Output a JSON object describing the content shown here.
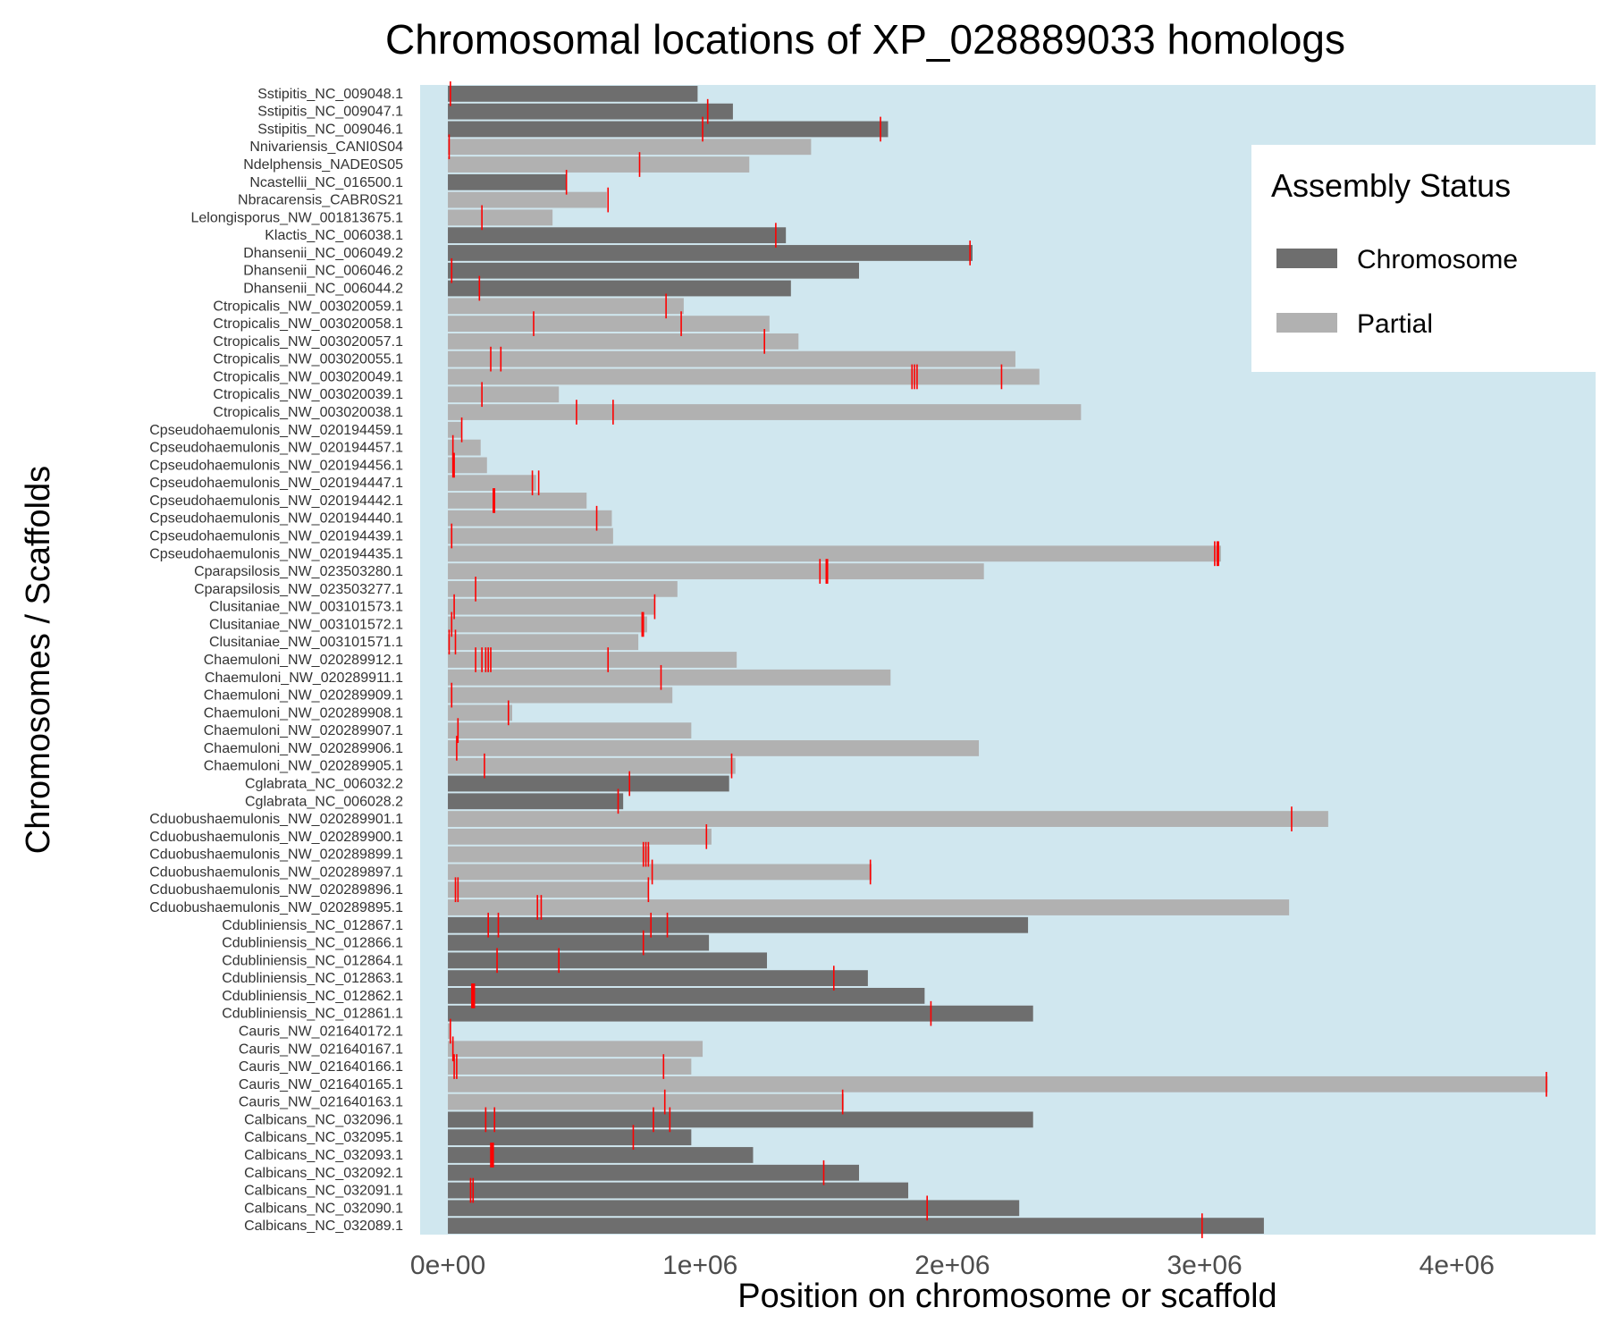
{
  "chart_data": {
    "type": "bar",
    "orientation": "horizontal",
    "title": "Chromosomal locations of XP_028889033 homologs",
    "xlabel": "Position on chromosome or scaffold",
    "ylabel": "Chromosomes / Scaffolds",
    "xlim": [
      -110000,
      4550000
    ],
    "x_ticks": [
      {
        "value": 0,
        "label": "0e+00"
      },
      {
        "value": 1000000,
        "label": "1e+06"
      },
      {
        "value": 2000000,
        "label": "2e+06"
      },
      {
        "value": 3000000,
        "label": "3e+06"
      },
      {
        "value": 4000000,
        "label": "4e+06"
      }
    ],
    "grid": false,
    "panel_background": "#d0e7ef",
    "colors": {
      "Chromosome": "#6e6e6e",
      "Partial": "#b1b1b1",
      "marker": "#ff0000"
    },
    "legend": {
      "title": "Assembly Status",
      "placement": "top-right",
      "entries": [
        "Chromosome",
        "Partial"
      ]
    },
    "categories": [
      {
        "name": "Sstipitis_NC_009048.1",
        "status": "Chromosome",
        "length": 990000,
        "positions": [
          10000
        ]
      },
      {
        "name": "Sstipitis_NC_009047.1",
        "status": "Chromosome",
        "length": 1130000,
        "positions": [
          1030000
        ]
      },
      {
        "name": "Sstipitis_NC_009046.1",
        "status": "Chromosome",
        "length": 1745000,
        "positions": [
          1010000,
          1715000
        ]
      },
      {
        "name": "Nnivariensis_CANI0S04",
        "status": "Partial",
        "length": 1440000,
        "positions": [
          5000
        ]
      },
      {
        "name": "Ndelphensis_NADE0S05",
        "status": "Partial",
        "length": 1195000,
        "positions": [
          760000
        ]
      },
      {
        "name": "Ncastellii_NC_016500.1",
        "status": "Chromosome",
        "length": 470000,
        "positions": [
          470000
        ]
      },
      {
        "name": "Nbracarensis_CABR0S21",
        "status": "Partial",
        "length": 630000,
        "positions": [
          635000
        ]
      },
      {
        "name": "Lelongisporus_NW_001813675.1",
        "status": "Partial",
        "length": 415000,
        "positions": [
          135000
        ]
      },
      {
        "name": "Klactis_NC_006038.1",
        "status": "Chromosome",
        "length": 1340000,
        "positions": [
          1300000
        ]
      },
      {
        "name": "Dhansenii_NC_006049.2",
        "status": "Chromosome",
        "length": 2080000,
        "positions": [
          2070000
        ]
      },
      {
        "name": "Dhansenii_NC_006046.2",
        "status": "Chromosome",
        "length": 1630000,
        "positions": [
          15000
        ]
      },
      {
        "name": "Dhansenii_NC_006044.2",
        "status": "Chromosome",
        "length": 1360000,
        "positions": [
          125000
        ]
      },
      {
        "name": "Ctropicalis_NW_003020059.1",
        "status": "Partial",
        "length": 935000,
        "positions": [
          865000
        ]
      },
      {
        "name": "Ctropicalis_NW_003020058.1",
        "status": "Partial",
        "length": 1275000,
        "positions": [
          340000,
          925000
        ]
      },
      {
        "name": "Ctropicalis_NW_003020057.1",
        "status": "Partial",
        "length": 1390000,
        "positions": [
          1255000
        ]
      },
      {
        "name": "Ctropicalis_NW_003020055.1",
        "status": "Partial",
        "length": 2250000,
        "positions": [
          170000,
          210000
        ]
      },
      {
        "name": "Ctropicalis_NW_003020049.1",
        "status": "Partial",
        "length": 2345000,
        "positions": [
          1840000,
          1850000,
          1860000,
          2195000
        ]
      },
      {
        "name": "Ctropicalis_NW_003020039.1",
        "status": "Partial",
        "length": 440000,
        "positions": [
          135000
        ]
      },
      {
        "name": "Ctropicalis_NW_003020038.1",
        "status": "Partial",
        "length": 2510000,
        "positions": [
          510000,
          655000
        ]
      },
      {
        "name": "Cpseudohaemulonis_NW_020194459.1",
        "status": "Partial",
        "length": 55000,
        "positions": [
          55000
        ]
      },
      {
        "name": "Cpseudohaemulonis_NW_020194457.1",
        "status": "Partial",
        "length": 130000,
        "positions": [
          20000
        ]
      },
      {
        "name": "Cpseudohaemulonis_NW_020194456.1",
        "status": "Partial",
        "length": 155000,
        "positions": [
          20000,
          25000
        ]
      },
      {
        "name": "Cpseudohaemulonis_NW_020194447.1",
        "status": "Partial",
        "length": 350000,
        "positions": [
          335000,
          360000
        ]
      },
      {
        "name": "Cpseudohaemulonis_NW_020194442.1",
        "status": "Partial",
        "length": 550000,
        "positions": [
          180000,
          185000
        ]
      },
      {
        "name": "Cpseudohaemulonis_NW_020194440.1",
        "status": "Partial",
        "length": 650000,
        "positions": [
          590000
        ]
      },
      {
        "name": "Cpseudohaemulonis_NW_020194439.1",
        "status": "Partial",
        "length": 655000,
        "positions": [
          15000
        ]
      },
      {
        "name": "Cpseudohaemulonis_NW_020194435.1",
        "status": "Partial",
        "length": 3065000,
        "positions": [
          3040000,
          3050000,
          3055000
        ]
      },
      {
        "name": "Cparapsilosis_NW_023503280.1",
        "status": "Partial",
        "length": 2125000,
        "positions": [
          1475000,
          1500000,
          1505000
        ]
      },
      {
        "name": "Cparapsilosis_NW_023503277.1",
        "status": "Partial",
        "length": 910000,
        "positions": [
          110000
        ]
      },
      {
        "name": "Clusitaniae_NW_003101573.1",
        "status": "Partial",
        "length": 820000,
        "positions": [
          25000,
          820000
        ]
      },
      {
        "name": "Clusitaniae_NW_003101572.1",
        "status": "Partial",
        "length": 790000,
        "positions": [
          15000,
          770000,
          775000
        ]
      },
      {
        "name": "Clusitaniae_NW_003101571.1",
        "status": "Partial",
        "length": 755000,
        "positions": [
          5000,
          30000
        ]
      },
      {
        "name": "Chaemuloni_NW_020289912.1",
        "status": "Partial",
        "length": 1145000,
        "positions": [
          110000,
          135000,
          150000,
          160000,
          170000,
          635000
        ]
      },
      {
        "name": "Chaemuloni_NW_020289911.1",
        "status": "Partial",
        "length": 1755000,
        "positions": [
          845000
        ]
      },
      {
        "name": "Chaemuloni_NW_020289909.1",
        "status": "Partial",
        "length": 890000,
        "positions": [
          15000
        ]
      },
      {
        "name": "Chaemuloni_NW_020289908.1",
        "status": "Partial",
        "length": 255000,
        "positions": [
          240000
        ]
      },
      {
        "name": "Chaemuloni_NW_020289907.1",
        "status": "Partial",
        "length": 965000,
        "positions": [
          40000
        ]
      },
      {
        "name": "Chaemuloni_NW_020289906.1",
        "status": "Partial",
        "length": 2105000,
        "positions": [
          35000
        ]
      },
      {
        "name": "Chaemuloni_NW_020289905.1",
        "status": "Partial",
        "length": 1140000,
        "positions": [
          145000,
          1125000
        ]
      },
      {
        "name": "Cglabrata_NC_006032.2",
        "status": "Chromosome",
        "length": 1115000,
        "positions": [
          720000
        ]
      },
      {
        "name": "Cglabrata_NC_006028.2",
        "status": "Chromosome",
        "length": 695000,
        "positions": [
          675000
        ]
      },
      {
        "name": "Cduobushaemulonis_NW_020289901.1",
        "status": "Partial",
        "length": 3490000,
        "positions": [
          3345000
        ]
      },
      {
        "name": "Cduobushaemulonis_NW_020289900.1",
        "status": "Partial",
        "length": 1045000,
        "positions": [
          1025000
        ]
      },
      {
        "name": "Cduobushaemulonis_NW_020289899.1",
        "status": "Partial",
        "length": 800000,
        "positions": [
          775000,
          785000,
          795000
        ]
      },
      {
        "name": "Cduobushaemulonis_NW_020289897.1",
        "status": "Partial",
        "length": 1680000,
        "positions": [
          810000,
          1675000
        ]
      },
      {
        "name": "Cduobushaemulonis_NW_020289896.1",
        "status": "Partial",
        "length": 795000,
        "positions": [
          30000,
          40000,
          795000
        ]
      },
      {
        "name": "Cduobushaemulonis_NW_020289895.1",
        "status": "Partial",
        "length": 3335000,
        "positions": [
          355000,
          370000
        ]
      },
      {
        "name": "Cdubliniensis_NC_012867.1",
        "status": "Chromosome",
        "length": 2300000,
        "positions": [
          160000,
          200000,
          805000,
          870000
        ]
      },
      {
        "name": "Cdubliniensis_NC_012866.1",
        "status": "Chromosome",
        "length": 1035000,
        "positions": [
          775000
        ]
      },
      {
        "name": "Cdubliniensis_NC_012864.1",
        "status": "Chromosome",
        "length": 1265000,
        "positions": [
          195000,
          440000
        ]
      },
      {
        "name": "Cdubliniensis_NC_012863.1",
        "status": "Chromosome",
        "length": 1665000,
        "positions": [
          1530000
        ]
      },
      {
        "name": "Cdubliniensis_NC_012862.1",
        "status": "Chromosome",
        "length": 1890000,
        "positions": [
          95000,
          100000,
          105000
        ]
      },
      {
        "name": "Cdubliniensis_NC_012861.1",
        "status": "Chromosome",
        "length": 2320000,
        "positions": [
          1915000
        ]
      },
      {
        "name": "Cauris_NW_021640172.1",
        "status": "Partial",
        "length": 10000,
        "positions": [
          10000
        ]
      },
      {
        "name": "Cauris_NW_021640167.1",
        "status": "Partial",
        "length": 1010000,
        "positions": [
          20000
        ]
      },
      {
        "name": "Cauris_NW_021640166.1",
        "status": "Partial",
        "length": 965000,
        "positions": [
          25000,
          35000,
          855000
        ]
      },
      {
        "name": "Cauris_NW_021640165.1",
        "status": "Partial",
        "length": 4360000,
        "positions": [
          4355000
        ]
      },
      {
        "name": "Cauris_NW_021640163.1",
        "status": "Partial",
        "length": 1570000,
        "positions": [
          860000,
          1565000
        ]
      },
      {
        "name": "Calbicans_NC_032096.1",
        "status": "Chromosome",
        "length": 2320000,
        "positions": [
          150000,
          185000,
          815000,
          880000
        ]
      },
      {
        "name": "Calbicans_NC_032095.1",
        "status": "Chromosome",
        "length": 965000,
        "positions": [
          735000
        ]
      },
      {
        "name": "Calbicans_NC_032093.1",
        "status": "Chromosome",
        "length": 1210000,
        "positions": [
          170000,
          175000,
          180000
        ]
      },
      {
        "name": "Calbicans_NC_032092.1",
        "status": "Chromosome",
        "length": 1630000,
        "positions": [
          1490000
        ]
      },
      {
        "name": "Calbicans_NC_032091.1",
        "status": "Chromosome",
        "length": 1825000,
        "positions": [
          90000,
          100000
        ]
      },
      {
        "name": "Calbicans_NC_032090.1",
        "status": "Chromosome",
        "length": 2265000,
        "positions": [
          1900000
        ]
      },
      {
        "name": "Calbicans_NC_032089.1",
        "status": "Chromosome",
        "length": 3235000,
        "positions": [
          2990000
        ]
      }
    ]
  }
}
